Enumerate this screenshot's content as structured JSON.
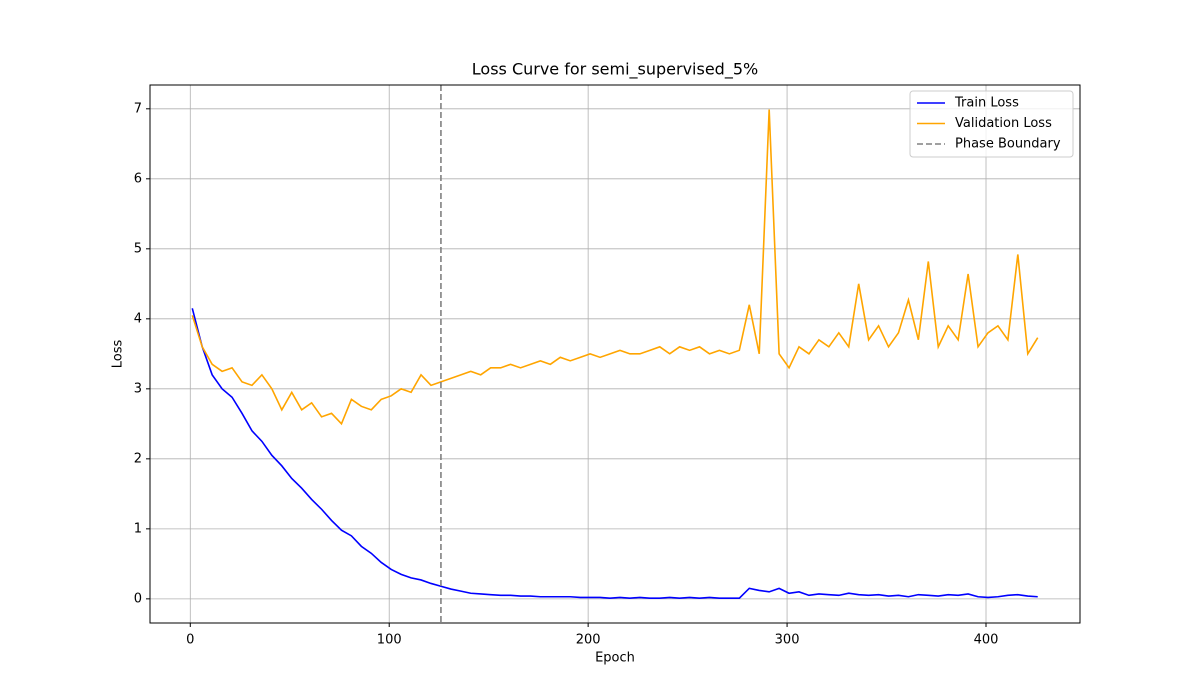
{
  "chart_data": {
    "type": "line",
    "title": "Loss Curve for semi_supervised_5%",
    "x_label": "Epoch",
    "y_label": "Loss",
    "x": [
      1,
      6,
      11,
      16,
      21,
      26,
      31,
      36,
      41,
      46,
      51,
      56,
      61,
      66,
      71,
      76,
      81,
      86,
      91,
      96,
      101,
      106,
      111,
      116,
      121,
      126,
      131,
      136,
      141,
      146,
      151,
      156,
      161,
      166,
      171,
      176,
      181,
      186,
      191,
      196,
      201,
      206,
      211,
      216,
      221,
      226,
      231,
      236,
      241,
      246,
      251,
      256,
      261,
      266,
      271,
      276,
      281,
      286,
      291,
      296,
      301,
      306,
      311,
      316,
      321,
      326,
      331,
      336,
      341,
      346,
      351,
      356,
      361,
      366,
      371,
      376,
      381,
      386,
      391,
      396,
      401,
      406,
      411,
      416,
      421,
      426
    ],
    "series": [
      {
        "name": "Train Loss",
        "color": "#0000ff",
        "values": [
          4.15,
          3.6,
          3.2,
          3.0,
          2.88,
          2.65,
          2.4,
          2.25,
          2.05,
          1.9,
          1.72,
          1.58,
          1.42,
          1.28,
          1.12,
          0.98,
          0.9,
          0.75,
          0.65,
          0.52,
          0.42,
          0.35,
          0.3,
          0.27,
          0.22,
          0.18,
          0.14,
          0.11,
          0.08,
          0.07,
          0.06,
          0.05,
          0.05,
          0.04,
          0.04,
          0.03,
          0.03,
          0.03,
          0.03,
          0.02,
          0.02,
          0.02,
          0.01,
          0.02,
          0.01,
          0.02,
          0.01,
          0.01,
          0.02,
          0.01,
          0.02,
          0.01,
          0.02,
          0.01,
          0.01,
          0.01,
          0.15,
          0.12,
          0.1,
          0.15,
          0.08,
          0.1,
          0.05,
          0.07,
          0.06,
          0.05,
          0.08,
          0.06,
          0.05,
          0.06,
          0.04,
          0.05,
          0.03,
          0.06,
          0.05,
          0.04,
          0.06,
          0.05,
          0.07,
          0.03,
          0.02,
          0.03,
          0.05,
          0.06,
          0.04,
          0.03
        ]
      },
      {
        "name": "Validation Loss",
        "color": "#ffa500",
        "values": [
          4.05,
          3.6,
          3.35,
          3.25,
          3.3,
          3.1,
          3.05,
          3.2,
          3.0,
          2.7,
          2.95,
          2.7,
          2.8,
          2.6,
          2.65,
          2.5,
          2.85,
          2.75,
          2.7,
          2.85,
          2.9,
          3.0,
          2.95,
          3.2,
          3.05,
          3.1,
          3.15,
          3.2,
          3.25,
          3.2,
          3.3,
          3.3,
          3.35,
          3.3,
          3.35,
          3.4,
          3.35,
          3.45,
          3.4,
          3.45,
          3.5,
          3.45,
          3.5,
          3.55,
          3.5,
          3.5,
          3.55,
          3.6,
          3.5,
          3.6,
          3.55,
          3.6,
          3.5,
          3.55,
          3.5,
          3.55,
          4.2,
          3.5,
          6.99,
          3.5,
          3.3,
          3.6,
          3.5,
          3.7,
          3.6,
          3.8,
          3.6,
          4.5,
          3.7,
          3.9,
          3.6,
          3.8,
          4.27,
          3.7,
          4.82,
          3.6,
          3.9,
          3.7,
          4.64,
          3.6,
          3.8,
          3.9,
          3.7,
          4.92,
          3.5,
          3.73
        ]
      }
    ],
    "vline": {
      "name": "Phase Boundary",
      "x": 126,
      "color": "#808080"
    },
    "xlim": [
      -20.25,
      447.25
    ],
    "ylim": [
      -0.345,
      7.34
    ],
    "xticks": [
      0,
      100,
      200,
      300,
      400
    ],
    "yticks": [
      0,
      1,
      2,
      3,
      4,
      5,
      6,
      7
    ],
    "grid": true,
    "legend": "upper right"
  }
}
